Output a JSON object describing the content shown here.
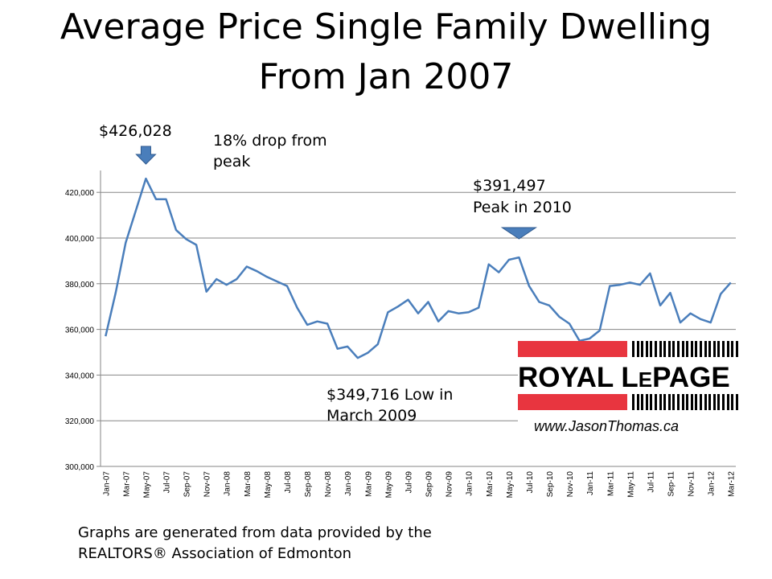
{
  "title_line1": "Average Price Single Family Dwelling",
  "title_line2": "From Jan 2007",
  "annotations": {
    "peak_value": "$426,028",
    "drop": "18% drop from peak",
    "peak2010_value": "$391,497",
    "peak2010_label": "Peak in 2010",
    "low": "$349,716 Low in March 2009"
  },
  "footer_line1": "Graphs are generated from data provided by the",
  "footer_line2": "REALTORS® Association of Edmonton",
  "logo": {
    "brand": "ROYAL LEPAGE",
    "website": "www.JasonThomas.ca",
    "red": "#e8353f"
  },
  "chart_data": {
    "type": "line",
    "title": "Average Price Single Family Dwelling From Jan 2007",
    "xlabel": "",
    "ylabel": "",
    "ylim": [
      300000,
      430000
    ],
    "yticks": [
      "300,000",
      "320,000",
      "340,000",
      "360,000",
      "380,000",
      "400,000",
      "420,000"
    ],
    "ytick_values": [
      300000,
      320000,
      340000,
      360000,
      380000,
      400000,
      420000
    ],
    "grid": true,
    "line_color": "#4a7ebb",
    "x": [
      "Jan-07",
      "Feb-07",
      "Mar-07",
      "Apr-07",
      "May-07",
      "Jun-07",
      "Jul-07",
      "Aug-07",
      "Sep-07",
      "Oct-07",
      "Nov-07",
      "Dec-07",
      "Jan-08",
      "Feb-08",
      "Mar-08",
      "Apr-08",
      "May-08",
      "Jun-08",
      "Jul-08",
      "Aug-08",
      "Sep-08",
      "Oct-08",
      "Nov-08",
      "Dec-08",
      "Jan-09",
      "Feb-09",
      "Mar-09",
      "Apr-09",
      "May-09",
      "Jun-09",
      "Jul-09",
      "Aug-09",
      "Sep-09",
      "Oct-09",
      "Nov-09",
      "Dec-09",
      "Jan-10",
      "Feb-10",
      "Mar-10",
      "Apr-10",
      "May-10",
      "Jun-10",
      "Jul-10",
      "Aug-10",
      "Sep-10",
      "Oct-10",
      "Nov-10",
      "Dec-10",
      "Jan-11",
      "Feb-11",
      "Mar-11",
      "Apr-11",
      "May-11",
      "Jun-11",
      "Jul-11",
      "Aug-11",
      "Sep-11",
      "Oct-11",
      "Nov-11",
      "Dec-11",
      "Jan-12",
      "Feb-12",
      "Mar-12"
    ],
    "values": [
      357000,
      376000,
      398000,
      412000,
      426028,
      417000,
      417000,
      403500,
      399500,
      397000,
      376500,
      382000,
      379500,
      382000,
      387500,
      385500,
      383000,
      381000,
      379000,
      369500,
      362000,
      363500,
      362500,
      351500,
      352500,
      347500,
      349716,
      353500,
      367500,
      370000,
      373000,
      367000,
      372000,
      363500,
      368000,
      367000,
      367500,
      369500,
      388500,
      385000,
      390500,
      391497,
      379000,
      372000,
      370500,
      365500,
      362500,
      355000,
      356000,
      359500,
      379000,
      379500,
      380500,
      379500,
      384500,
      370500,
      376000,
      363000,
      367000,
      364500,
      363000,
      375500,
      380500
    ]
  }
}
